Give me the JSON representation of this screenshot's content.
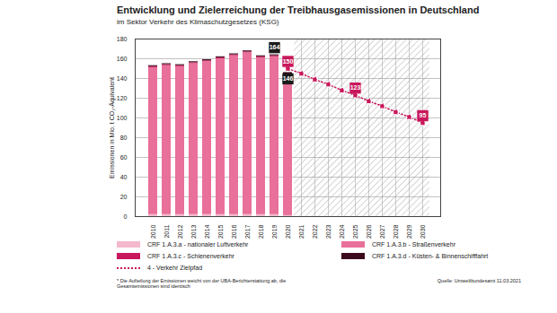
{
  "chart_data": {
    "type": "bar",
    "title": "Entwicklung und Zielerreichung der Treibhausgasemissionen in Deutschland",
    "subtitle": "im Sektor Verkehr des Klimaschutzgesetzes (KSG)",
    "y_label": "Emissionen in Mio. t CO₂-Äquivalent",
    "categories": [
      "2010",
      "2011",
      "2012",
      "2013",
      "2014",
      "2015",
      "2016",
      "2017",
      "2018",
      "2019",
      "2020",
      "2021",
      "2022",
      "2023",
      "2024",
      "2025",
      "2026",
      "2027",
      "2028",
      "2029",
      "2030"
    ],
    "stacked": true,
    "series": [
      {
        "name": "CRF 1.A.3.a - nationaler Luftverkehr",
        "type": "bar",
        "color": "#f4b8cc",
        "values": [
          2,
          2,
          2,
          2,
          2,
          2,
          2,
          2,
          2,
          2,
          1,
          null,
          null,
          null,
          null,
          null,
          null,
          null,
          null,
          null,
          null
        ]
      },
      {
        "name": "CRF 1.A.3.b - Straßenverkehr",
        "type": "bar",
        "color": "#e8709a",
        "values": [
          149,
          151,
          150,
          153,
          155,
          158,
          161,
          164,
          159,
          160,
          142,
          null,
          null,
          null,
          null,
          null,
          null,
          null,
          null,
          null,
          null
        ]
      },
      {
        "name": "CRF 1.A.3.c - Schienenverkehr",
        "type": "bar",
        "color": "#c8175a",
        "values": [
          1,
          1,
          1,
          1,
          1,
          1,
          1,
          1,
          1,
          1,
          1,
          null,
          null,
          null,
          null,
          null,
          null,
          null,
          null,
          null,
          null
        ]
      },
      {
        "name": "CRF 1.A.3.d - Küsten- & Binnenschifffahrt",
        "type": "bar",
        "color": "#3c0a1e",
        "values": [
          1,
          1,
          1,
          1,
          1,
          1,
          1,
          1,
          1,
          1,
          2,
          null,
          null,
          null,
          null,
          null,
          null,
          null,
          null,
          null,
          null
        ]
      },
      {
        "name": "4 - Verkehr Zielpfad",
        "type": "line",
        "color": "#c8175a",
        "line_style": "dotted",
        "marker": "circle",
        "values": [
          null,
          null,
          null,
          null,
          null,
          null,
          null,
          null,
          null,
          null,
          150,
          145,
          139,
          134,
          128,
          123,
          117,
          112,
          106,
          101,
          95
        ]
      }
    ],
    "annotations": [
      {
        "x": "2019",
        "y": 164,
        "text": "164",
        "color": "#1a1a1a"
      },
      {
        "x": "2020",
        "y": 150,
        "text": "150",
        "color": "#c8175a"
      },
      {
        "x": "2020",
        "y": 146,
        "text": "146",
        "color": "#1a1a1a"
      },
      {
        "x": "2025",
        "y": 123,
        "text": "123",
        "color": "#c8175a"
      },
      {
        "x": "2030",
        "y": 95,
        "text": "95",
        "color": "#c8175a"
      }
    ],
    "ylim": [
      0,
      180
    ],
    "yticks": [
      0,
      20,
      40,
      60,
      80,
      100,
      120,
      140,
      160,
      180
    ],
    "grid": true,
    "legend": "bottom",
    "footnote": "* Die Aufteilung der Emissionen weicht von der UBA-Berichterstattung ab, die Gesamtemissionen sind identisch",
    "source": "Quelle: Umweltbundesamt 11.03.2021"
  }
}
